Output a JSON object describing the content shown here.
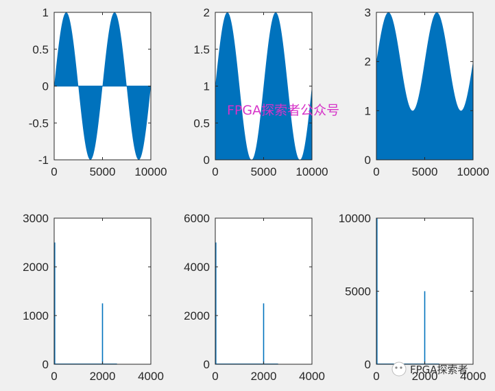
{
  "watermark": {
    "text": "FPGA探索者公众号",
    "badge_text": "FPGA探索者"
  },
  "chart_data": [
    {
      "type": "area",
      "series": [
        {
          "kind": "dense-oscillation-envelope",
          "upper": "sin",
          "lower": 0,
          "offset": 0,
          "amplitude": 1,
          "period_samples": 5000,
          "phase_peak_at": 1250
        }
      ],
      "xlim": [
        0,
        10000
      ],
      "ylim": [
        -1,
        1
      ],
      "xticks": [
        0,
        5000,
        10000
      ],
      "xtick_labels": [
        "0",
        "5000",
        "10000"
      ],
      "yticks": [
        -1,
        -0.5,
        0,
        0.5,
        1
      ],
      "ytick_labels": [
        "-1",
        "-0.5",
        "0",
        "0.5",
        "1"
      ],
      "color": "#0072bd"
    },
    {
      "type": "area",
      "series": [
        {
          "kind": "dense-oscillation-envelope",
          "upper": "1+sin",
          "lower": 0,
          "offset": 1,
          "amplitude": 1,
          "period_samples": 5000,
          "phase_peak_at": 1250
        }
      ],
      "xlim": [
        0,
        10000
      ],
      "ylim": [
        0,
        2
      ],
      "xticks": [
        0,
        5000,
        10000
      ],
      "xtick_labels": [
        "0",
        "5000",
        "10000"
      ],
      "yticks": [
        0,
        0.5,
        1,
        1.5,
        2
      ],
      "ytick_labels": [
        "0",
        "0.5",
        "1",
        "1.5",
        "2"
      ],
      "color": "#0072bd"
    },
    {
      "type": "area",
      "series": [
        {
          "kind": "dense-oscillation-envelope",
          "upper": "2+sin",
          "lower": 0,
          "offset": 2,
          "amplitude": 1,
          "period_samples": 5000,
          "phase_peak_at": 1250
        }
      ],
      "xlim": [
        0,
        10000
      ],
      "ylim": [
        0,
        3
      ],
      "xticks": [
        0,
        5000,
        10000
      ],
      "xtick_labels": [
        "0",
        "5000",
        "10000"
      ],
      "yticks": [
        0,
        1,
        2,
        3
      ],
      "ytick_labels": [
        "0",
        "1",
        "2",
        "3"
      ],
      "color": "#0072bd"
    },
    {
      "type": "line",
      "series": [
        {
          "x": [
            0,
            1,
            2000,
            4000
          ],
          "y": [
            2500,
            0,
            1250,
            0
          ],
          "spikes": [
            {
              "x": 0,
              "y": 2500
            },
            {
              "x": 2000,
              "y": 1250
            }
          ]
        }
      ],
      "xlim": [
        0,
        4000
      ],
      "ylim": [
        0,
        3000
      ],
      "xticks": [
        0,
        2000,
        4000
      ],
      "xtick_labels": [
        "0",
        "2000",
        "4000"
      ],
      "yticks": [
        0,
        1000,
        2000,
        3000
      ],
      "ytick_labels": [
        "0",
        "1000",
        "2000",
        "3000"
      ],
      "color": "#0072bd"
    },
    {
      "type": "line",
      "series": [
        {
          "x": [
            0,
            2000
          ],
          "y": [
            5000,
            2500
          ],
          "spikes": [
            {
              "x": 0,
              "y": 5000
            },
            {
              "x": 2000,
              "y": 2500
            }
          ]
        }
      ],
      "xlim": [
        0,
        4000
      ],
      "ylim": [
        0,
        6000
      ],
      "xticks": [
        0,
        2000,
        4000
      ],
      "xtick_labels": [
        "0",
        "2000",
        "4000"
      ],
      "yticks": [
        0,
        2000,
        4000,
        6000
      ],
      "ytick_labels": [
        "0",
        "2000",
        "4000",
        "6000"
      ],
      "color": "#0072bd"
    },
    {
      "type": "line",
      "series": [
        {
          "x": [
            0,
            2000
          ],
          "y": [
            10000,
            5000
          ],
          "spikes": [
            {
              "x": 0,
              "y": 10000
            },
            {
              "x": 2000,
              "y": 5000
            }
          ]
        }
      ],
      "xlim": [
        0,
        4000
      ],
      "ylim": [
        0,
        10000
      ],
      "xticks": [
        0,
        2000,
        4000
      ],
      "xtick_labels": [
        "0",
        "2000",
        "4000"
      ],
      "yticks": [
        0,
        5000,
        10000
      ],
      "ytick_labels": [
        "0",
        "5000",
        "10000"
      ],
      "color": "#0072bd"
    }
  ]
}
